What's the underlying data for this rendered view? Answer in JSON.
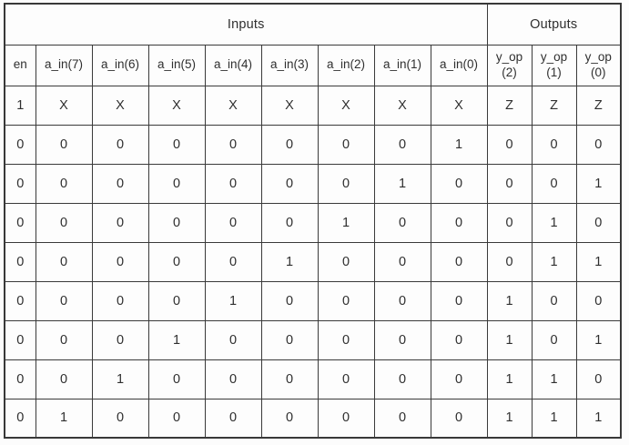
{
  "table": {
    "group_headers": [
      {
        "label": "Inputs",
        "colspan": 9
      },
      {
        "label": "Outputs",
        "colspan": 3
      }
    ],
    "outputs_start_index": 9,
    "columns": [
      {
        "id": "en",
        "label": "en"
      },
      {
        "id": "a_in_7",
        "label": "a_in(7)"
      },
      {
        "id": "a_in_6",
        "label": "a_in(6)"
      },
      {
        "id": "a_in_5",
        "label": "a_in(5)"
      },
      {
        "id": "a_in_4",
        "label": "a_in(4)"
      },
      {
        "id": "a_in_3",
        "label": "a_in(3)"
      },
      {
        "id": "a_in_2",
        "label": "a_in(2)"
      },
      {
        "id": "a_in_1",
        "label": "a_in(1)"
      },
      {
        "id": "a_in_0",
        "label": "a_in(0)"
      },
      {
        "id": "y_op_2",
        "label": "y_op\n(2)"
      },
      {
        "id": "y_op_1",
        "label": "y_op\n(1)"
      },
      {
        "id": "y_op_0",
        "label": "y_op\n(0)"
      }
    ],
    "rows": [
      [
        "1",
        "X",
        "X",
        "X",
        "X",
        "X",
        "X",
        "X",
        "X",
        "Z",
        "Z",
        "Z"
      ],
      [
        "0",
        "0",
        "0",
        "0",
        "0",
        "0",
        "0",
        "0",
        "1",
        "0",
        "0",
        "0"
      ],
      [
        "0",
        "0",
        "0",
        "0",
        "0",
        "0",
        "0",
        "1",
        "0",
        "0",
        "0",
        "1"
      ],
      [
        "0",
        "0",
        "0",
        "0",
        "0",
        "0",
        "1",
        "0",
        "0",
        "0",
        "1",
        "0"
      ],
      [
        "0",
        "0",
        "0",
        "0",
        "0",
        "1",
        "0",
        "0",
        "0",
        "0",
        "1",
        "1"
      ],
      [
        "0",
        "0",
        "0",
        "0",
        "1",
        "0",
        "0",
        "0",
        "0",
        "1",
        "0",
        "0"
      ],
      [
        "0",
        "0",
        "0",
        "1",
        "0",
        "0",
        "0",
        "0",
        "0",
        "1",
        "0",
        "1"
      ],
      [
        "0",
        "0",
        "1",
        "0",
        "0",
        "0",
        "0",
        "0",
        "0",
        "1",
        "1",
        "0"
      ],
      [
        "0",
        "1",
        "0",
        "0",
        "0",
        "0",
        "0",
        "0",
        "0",
        "1",
        "1",
        "1"
      ]
    ]
  },
  "colors": {
    "border": "#3a3a3a",
    "text": "#2f2f2f",
    "background": "#fcfcfc",
    "cell_background": "#fdfdfd"
  }
}
